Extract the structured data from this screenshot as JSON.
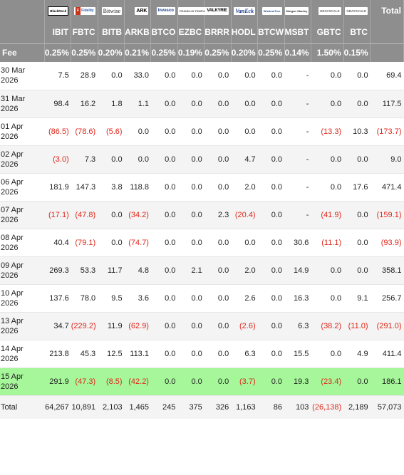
{
  "issuers": [
    {
      "name": "BlackRock",
      "icon": "blackrock-logo"
    },
    {
      "name": "Fidelity",
      "icon": "fidelity-logo"
    },
    {
      "name": "Bitwise",
      "icon": "bitwise-logo"
    },
    {
      "name": "ARK",
      "icon": "ark-logo"
    },
    {
      "name": "Invesco",
      "icon": "invesco-logo"
    },
    {
      "name": "FRANKLIN TEMPLETON",
      "icon": "franklin-logo"
    },
    {
      "name": "VALKYRIE",
      "icon": "valkyrie-logo"
    },
    {
      "name": "VanEck",
      "icon": "vaneck-logo"
    },
    {
      "name": "WisdomTree",
      "icon": "wisdomtree-logo"
    },
    {
      "name": "Morgan Stanley",
      "icon": "morgan-stanley-logo"
    },
    {
      "name": "GRAYSCALE",
      "icon": "grayscale-logo"
    },
    {
      "name": "GRAYSCALE",
      "icon": "grayscale-logo"
    }
  ],
  "total_header": "Total",
  "tickers": [
    "IBIT",
    "FBTC",
    "BITB",
    "ARKB",
    "BTCO",
    "EZBC",
    "BRRR",
    "HODL",
    "BTCW",
    "MSBT",
    "GBTC",
    "BTC"
  ],
  "fee_label": "Fee",
  "fees": [
    "0.25%",
    "0.25%",
    "0.20%",
    "0.21%",
    "0.25%",
    "0.19%",
    "0.25%",
    "0.20%",
    "0.25%",
    "0.14%",
    "1.50%",
    "0.15%"
  ],
  "rows": [
    {
      "date": [
        "30 Mar",
        "2026"
      ],
      "values": [
        "7.5",
        "28.9",
        "0.0",
        "33.0",
        "0.0",
        "0.0",
        "0.0",
        "0.0",
        "0.0",
        "-",
        "0.0",
        "0.0"
      ],
      "total": "69.4"
    },
    {
      "date": [
        "31 Mar",
        "2026"
      ],
      "values": [
        "98.4",
        "16.2",
        "1.8",
        "1.1",
        "0.0",
        "0.0",
        "0.0",
        "0.0",
        "0.0",
        "-",
        "0.0",
        "0.0"
      ],
      "total": "117.5"
    },
    {
      "date": [
        "01 Apr",
        "2026"
      ],
      "values": [
        "(86.5)",
        "(78.6)",
        "(5.6)",
        "0.0",
        "0.0",
        "0.0",
        "0.0",
        "0.0",
        "0.0",
        "-",
        "(13.3)",
        "10.3"
      ],
      "total": "(173.7)"
    },
    {
      "date": [
        "02 Apr",
        "2026"
      ],
      "values": [
        "(3.0)",
        "7.3",
        "0.0",
        "0.0",
        "0.0",
        "0.0",
        "0.0",
        "4.7",
        "0.0",
        "-",
        "0.0",
        "0.0"
      ],
      "total": "9.0"
    },
    {
      "date": [
        "06 Apr",
        "2026"
      ],
      "values": [
        "181.9",
        "147.3",
        "3.8",
        "118.8",
        "0.0",
        "0.0",
        "0.0",
        "2.0",
        "0.0",
        "-",
        "0.0",
        "17.6"
      ],
      "total": "471.4"
    },
    {
      "date": [
        "07 Apr",
        "2026"
      ],
      "values": [
        "(17.1)",
        "(47.8)",
        "0.0",
        "(34.2)",
        "0.0",
        "0.0",
        "2.3",
        "(20.4)",
        "0.0",
        "-",
        "(41.9)",
        "0.0"
      ],
      "total": "(159.1)"
    },
    {
      "date": [
        "08 Apr",
        "2026"
      ],
      "values": [
        "40.4",
        "(79.1)",
        "0.0",
        "(74.7)",
        "0.0",
        "0.0",
        "0.0",
        "0.0",
        "0.0",
        "30.6",
        "(11.1)",
        "0.0"
      ],
      "total": "(93.9)"
    },
    {
      "date": [
        "09 Apr",
        "2026"
      ],
      "values": [
        "269.3",
        "53.3",
        "11.7",
        "4.8",
        "0.0",
        "2.1",
        "0.0",
        "2.0",
        "0.0",
        "14.9",
        "0.0",
        "0.0"
      ],
      "total": "358.1"
    },
    {
      "date": [
        "10 Apr",
        "2026"
      ],
      "values": [
        "137.6",
        "78.0",
        "9.5",
        "3.6",
        "0.0",
        "0.0",
        "0.0",
        "2.6",
        "0.0",
        "16.3",
        "0.0",
        "9.1"
      ],
      "total": "256.7"
    },
    {
      "date": [
        "13 Apr",
        "2026"
      ],
      "values": [
        "34.7",
        "(229.2)",
        "11.9",
        "(62.9)",
        "0.0",
        "0.0",
        "0.0",
        "(2.6)",
        "0.0",
        "6.3",
        "(38.2)",
        "(11.0)"
      ],
      "total": "(291.0)"
    },
    {
      "date": [
        "14 Apr",
        "2026"
      ],
      "values": [
        "213.8",
        "45.3",
        "12.5",
        "113.1",
        "0.0",
        "0.0",
        "0.0",
        "6.3",
        "0.0",
        "15.5",
        "0.0",
        "4.9"
      ],
      "total": "411.4"
    },
    {
      "date": [
        "15 Apr",
        "2026"
      ],
      "values": [
        "291.9",
        "(47.3)",
        "(8.5)",
        "(42.2)",
        "0.0",
        "0.0",
        "0.0",
        "(3.7)",
        "0.0",
        "19.3",
        "(23.4)",
        "0.0"
      ],
      "total": "186.1",
      "highlight": true
    }
  ],
  "totals": {
    "label": "Total",
    "values": [
      "64,267",
      "10,891",
      "2,103",
      "1,465",
      "245",
      "375",
      "326",
      "1,163",
      "86",
      "103",
      "(26,138)",
      "2,189"
    ],
    "total": "57,073"
  },
  "colors": {
    "header_bg": "#8e8e8e",
    "negative": "#e0281c",
    "highlight_row": "#a6f79a",
    "alt_row": "#f4f4f4"
  }
}
